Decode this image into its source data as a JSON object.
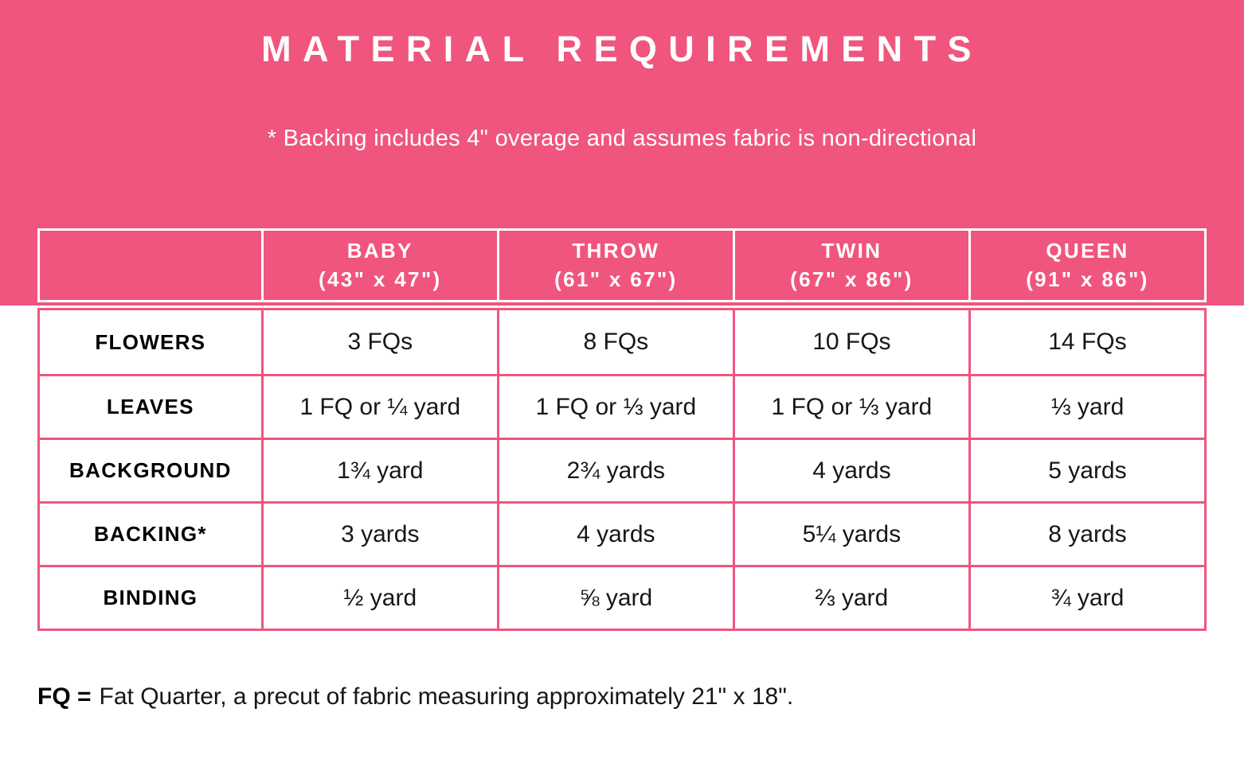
{
  "colors": {
    "banner_pink": "#F0557E",
    "table_border_pink": "#F0557E",
    "header_text": "#FFFFFF",
    "body_text": "#161616"
  },
  "chart_data": {
    "type": "table",
    "title": "MATERIAL REQUIREMENTS",
    "subtitle": "* Backing includes 4\" overage and assumes fabric is non-directional",
    "columns": [
      {
        "size": "",
        "dims": ""
      },
      {
        "size": "BABY",
        "dims": "(43\" x 47\")"
      },
      {
        "size": "THROW",
        "dims": "(61\" x 67\")"
      },
      {
        "size": "TWIN",
        "dims": "(67\" x 86\")"
      },
      {
        "size": "QUEEN",
        "dims": "(91\" x 86\")"
      }
    ],
    "rows": [
      {
        "label": "FLOWERS",
        "values": [
          "3 FQs",
          "8 FQs",
          "10 FQs",
          "14 FQs"
        ]
      },
      {
        "label": "LEAVES",
        "values": [
          "1 FQ or ¼ yard",
          "1 FQ or ⅓ yard",
          "1 FQ or ⅓ yard",
          "⅓ yard"
        ]
      },
      {
        "label": "BACKGROUND",
        "values": [
          "1¾ yard",
          "2¾ yards",
          "4 yards",
          "5 yards"
        ]
      },
      {
        "label": "BACKING*",
        "values": [
          "3 yards",
          "4 yards",
          "5¼ yards",
          "8 yards"
        ]
      },
      {
        "label": "BINDING",
        "values": [
          "½ yard",
          "⅝ yard",
          "⅔ yard",
          "¾ yard"
        ]
      }
    ],
    "footnote": {
      "term": "FQ =",
      "text": "Fat Quarter, a precut of fabric measuring approximately 21\" x 18\"."
    },
    "layout_hints": {
      "grid": true,
      "header_on_pink_banner": true
    }
  }
}
